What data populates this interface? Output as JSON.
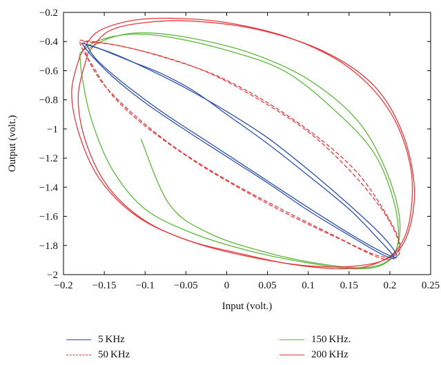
{
  "chart_data": {
    "type": "line",
    "title": "",
    "xlabel": "Input (volt.)",
    "ylabel": "Output (volt.)",
    "xlim": [
      -0.2,
      0.25
    ],
    "ylim": [
      -2.0,
      -0.2
    ],
    "xticks": [
      -0.2,
      -0.15,
      -0.1,
      -0.05,
      0,
      0.05,
      0.1,
      0.15,
      0.2,
      0.25
    ],
    "xtick_labels": [
      "−0.2",
      "−0.15",
      "−0.1",
      "−0.05",
      "0",
      "0.05",
      "0.1",
      "0.15",
      "0.2",
      "0.25"
    ],
    "yticks": [
      -2.0,
      -1.8,
      -1.6,
      -1.4,
      -1.2,
      -1.0,
      -0.8,
      -0.6,
      -0.4,
      -0.2
    ],
    "ytick_labels": [
      "−2",
      "−1.8",
      "−1.6",
      "−1.4",
      "−1.2",
      "−1",
      "−0.8",
      "−0.6",
      "−0.4",
      "−0.2"
    ],
    "grid": false,
    "legend_position": "below",
    "series": [
      {
        "name": "5 KHz",
        "color": "#2b4fa8",
        "dash": "solid",
        "loops": [
          [
            [
              -0.178,
              -0.41
            ],
            [
              -0.16,
              -0.44
            ],
            [
              -0.12,
              -0.53
            ],
            [
              -0.08,
              -0.62
            ],
            [
              -0.04,
              -0.74
            ],
            [
              0.0,
              -0.9
            ],
            [
              0.05,
              -1.1
            ],
            [
              0.1,
              -1.32
            ],
            [
              0.15,
              -1.55
            ],
            [
              0.185,
              -1.75
            ],
            [
              0.205,
              -1.88
            ],
            [
              0.19,
              -1.86
            ],
            [
              0.15,
              -1.73
            ],
            [
              0.1,
              -1.56
            ],
            [
              0.05,
              -1.37
            ],
            [
              0.0,
              -1.19
            ],
            [
              -0.05,
              -1.01
            ],
            [
              -0.1,
              -0.82
            ],
            [
              -0.14,
              -0.64
            ],
            [
              -0.165,
              -0.5
            ],
            [
              -0.178,
              -0.41
            ]
          ],
          [
            [
              -0.172,
              -0.42
            ],
            [
              -0.14,
              -0.48
            ],
            [
              -0.1,
              -0.58
            ],
            [
              -0.05,
              -0.72
            ],
            [
              0.0,
              -0.88
            ],
            [
              0.05,
              -1.06
            ],
            [
              0.1,
              -1.28
            ],
            [
              0.15,
              -1.52
            ],
            [
              0.19,
              -1.73
            ],
            [
              0.208,
              -1.86
            ],
            [
              0.2,
              -1.87
            ],
            [
              0.16,
              -1.75
            ],
            [
              0.1,
              -1.54
            ],
            [
              0.04,
              -1.32
            ],
            [
              -0.02,
              -1.1
            ],
            [
              -0.08,
              -0.88
            ],
            [
              -0.13,
              -0.67
            ],
            [
              -0.16,
              -0.52
            ],
            [
              -0.172,
              -0.42
            ]
          ]
        ]
      },
      {
        "name": "50 KHz",
        "color": "#e0393e",
        "dash": "dashed",
        "loops": [
          [
            [
              -0.18,
              -0.39
            ],
            [
              -0.14,
              -0.42
            ],
            [
              -0.08,
              -0.5
            ],
            [
              -0.02,
              -0.62
            ],
            [
              0.04,
              -0.8
            ],
            [
              0.1,
              -1.02
            ],
            [
              0.15,
              -1.28
            ],
            [
              0.19,
              -1.55
            ],
            [
              0.21,
              -1.76
            ],
            [
              0.21,
              -1.87
            ],
            [
              0.19,
              -1.89
            ],
            [
              0.14,
              -1.76
            ],
            [
              0.08,
              -1.6
            ],
            [
              0.02,
              -1.42
            ],
            [
              -0.04,
              -1.22
            ],
            [
              -0.1,
              -0.98
            ],
            [
              -0.14,
              -0.77
            ],
            [
              -0.165,
              -0.56
            ],
            [
              -0.178,
              -0.44
            ],
            [
              -0.18,
              -0.39
            ]
          ],
          [
            [
              -0.175,
              -0.4
            ],
            [
              -0.13,
              -0.43
            ],
            [
              -0.07,
              -0.52
            ],
            [
              -0.01,
              -0.64
            ],
            [
              0.05,
              -0.82
            ],
            [
              0.11,
              -1.05
            ],
            [
              0.16,
              -1.3
            ],
            [
              0.195,
              -1.58
            ],
            [
              0.212,
              -1.78
            ],
            [
              0.205,
              -1.87
            ],
            [
              0.18,
              -1.86
            ],
            [
              0.12,
              -1.7
            ],
            [
              0.06,
              -1.53
            ],
            [
              0.0,
              -1.35
            ],
            [
              -0.06,
              -1.14
            ],
            [
              -0.11,
              -0.92
            ],
            [
              -0.15,
              -0.7
            ],
            [
              -0.17,
              -0.52
            ],
            [
              -0.175,
              -0.4
            ]
          ]
        ]
      },
      {
        "name": "150 KHz.",
        "color": "#5db53a",
        "dash": "solid",
        "loops": [
          [
            [
              -0.18,
              -0.48
            ],
            [
              -0.16,
              -0.4
            ],
            [
              -0.12,
              -0.35
            ],
            [
              -0.07,
              -0.37
            ],
            [
              0.0,
              -0.46
            ],
            [
              0.07,
              -0.6
            ],
            [
              0.13,
              -0.86
            ],
            [
              0.18,
              -1.16
            ],
            [
              0.205,
              -1.5
            ],
            [
              0.21,
              -1.78
            ],
            [
              0.195,
              -1.92
            ],
            [
              0.16,
              -1.96
            ],
            [
              0.1,
              -1.92
            ],
            [
              0.03,
              -1.84
            ],
            [
              -0.04,
              -1.72
            ],
            [
              -0.1,
              -1.55
            ],
            [
              -0.14,
              -1.28
            ],
            [
              -0.165,
              -0.95
            ],
            [
              -0.177,
              -0.65
            ],
            [
              -0.18,
              -0.48
            ]
          ],
          [
            [
              -0.17,
              -0.45
            ],
            [
              -0.14,
              -0.37
            ],
            [
              -0.1,
              -0.34
            ],
            [
              -0.04,
              -0.38
            ],
            [
              0.03,
              -0.48
            ],
            [
              0.1,
              -0.66
            ],
            [
              0.16,
              -0.94
            ],
            [
              0.195,
              -1.28
            ],
            [
              0.212,
              -1.62
            ],
            [
              0.205,
              -1.86
            ],
            [
              0.175,
              -1.95
            ],
            [
              0.12,
              -1.93
            ],
            [
              0.05,
              -1.85
            ],
            [
              -0.02,
              -1.72
            ],
            [
              -0.07,
              -1.52
            ],
            [
              -0.105,
              -1.07
            ]
          ]
        ]
      },
      {
        "name": "200 KHz",
        "color": "#e0393e",
        "dash": "solid",
        "loops": [
          [
            [
              -0.18,
              -0.5
            ],
            [
              -0.16,
              -0.34
            ],
            [
              -0.12,
              -0.26
            ],
            [
              -0.07,
              -0.24
            ],
            [
              0.0,
              -0.27
            ],
            [
              0.08,
              -0.38
            ],
            [
              0.15,
              -0.58
            ],
            [
              0.2,
              -0.88
            ],
            [
              0.225,
              -1.25
            ],
            [
              0.225,
              -1.6
            ],
            [
              0.21,
              -1.82
            ],
            [
              0.18,
              -1.93
            ],
            [
              0.14,
              -1.96
            ],
            [
              0.08,
              -1.93
            ],
            [
              0.02,
              -1.86
            ],
            [
              -0.05,
              -1.76
            ],
            [
              -0.11,
              -1.6
            ],
            [
              -0.155,
              -1.35
            ],
            [
              -0.18,
              -1.05
            ],
            [
              -0.19,
              -0.75
            ],
            [
              -0.18,
              -0.5
            ]
          ],
          [
            [
              -0.17,
              -0.48
            ],
            [
              -0.145,
              -0.33
            ],
            [
              -0.1,
              -0.27
            ],
            [
              -0.04,
              -0.26
            ],
            [
              0.04,
              -0.32
            ],
            [
              0.12,
              -0.47
            ],
            [
              0.18,
              -0.7
            ],
            [
              0.215,
              -1.02
            ],
            [
              0.23,
              -1.4
            ],
            [
              0.222,
              -1.72
            ],
            [
              0.2,
              -1.88
            ],
            [
              0.16,
              -1.94
            ],
            [
              0.1,
              -1.94
            ],
            [
              0.03,
              -1.88
            ],
            [
              -0.04,
              -1.78
            ],
            [
              -0.1,
              -1.63
            ],
            [
              -0.145,
              -1.4
            ],
            [
              -0.172,
              -1.1
            ],
            [
              -0.182,
              -0.78
            ],
            [
              -0.17,
              -0.48
            ]
          ]
        ]
      }
    ]
  }
}
